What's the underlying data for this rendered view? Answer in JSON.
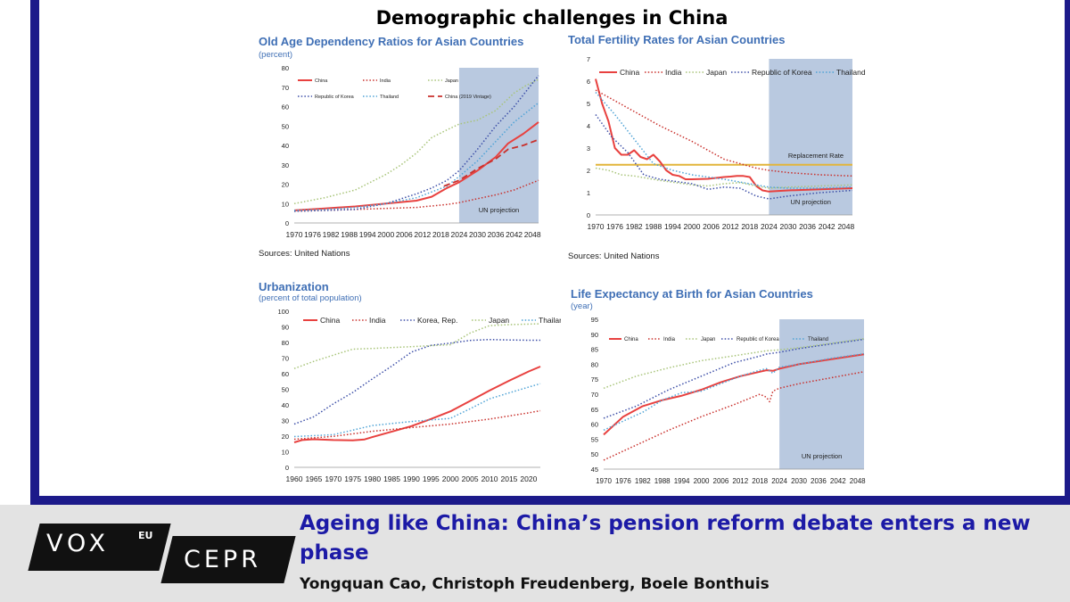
{
  "page_title": "Demographic challenges in China",
  "article": {
    "title": "Ageing like China: China’s pension reform debate enters a new phase",
    "authors": "Yongquan Cao, Christoph Freudenberg, Boele Bonthuis"
  },
  "logo": {
    "vox": "VOX",
    "eu": "EU",
    "cepr": "CEPR"
  },
  "colors": {
    "frame": "#1c1a8a",
    "title_blue": "#3f6fb5",
    "projection_band": "#b9c9e0",
    "headline": "#1c1aa6"
  },
  "chart_data": [
    {
      "type": "line",
      "title": "Old Age Dependency Ratios for Asian Countries",
      "subtitle": "(percent)",
      "source": "Sources: United Nations",
      "annotation": "UN projection",
      "projection_start": 2024,
      "x_ticks": [
        "1970",
        "1976",
        "1982",
        "1988",
        "1994",
        "2000",
        "2006",
        "2012",
        "2018",
        "2024",
        "2030",
        "2036",
        "2042",
        "2048"
      ],
      "xlim": [
        1970,
        2050
      ],
      "ylim": [
        0,
        80
      ],
      "y_ticks": [
        0,
        10,
        20,
        30,
        40,
        50,
        60,
        70,
        80
      ],
      "legend_position": "top-left",
      "series": [
        {
          "name": "China",
          "color": "#e8413f",
          "style": "solid",
          "width": 2,
          "x": [
            1970,
            1980,
            1990,
            2000,
            2010,
            2015,
            2020,
            2024,
            2030,
            2036,
            2040,
            2045,
            2050
          ],
          "y": [
            6.5,
            7.5,
            8.5,
            10,
            11.5,
            13.5,
            18,
            21,
            27,
            34,
            41,
            46,
            52
          ]
        },
        {
          "name": "India",
          "color": "#c9302c",
          "style": "dotted",
          "width": 1.5,
          "x": [
            1970,
            1980,
            1990,
            2000,
            2010,
            2020,
            2024,
            2030,
            2036,
            2042,
            2050
          ],
          "y": [
            6,
            6.5,
            7,
            7.5,
            8,
            9.5,
            10.5,
            12.5,
            14.5,
            17,
            22
          ]
        },
        {
          "name": "Japan",
          "color": "#a8c479",
          "style": "dotted",
          "width": 1.5,
          "x": [
            1970,
            1980,
            1990,
            2000,
            2005,
            2010,
            2015,
            2020,
            2024,
            2030,
            2036,
            2042,
            2046,
            2050
          ],
          "y": [
            10,
            13,
            17,
            25,
            30,
            36,
            44,
            48,
            51,
            53,
            58,
            67,
            71,
            74
          ]
        },
        {
          "name": "Republic of Korea",
          "color": "#3d4fa8",
          "style": "dotted",
          "width": 1.5,
          "x": [
            1970,
            1980,
            1990,
            2000,
            2010,
            2015,
            2020,
            2024,
            2030,
            2036,
            2042,
            2048,
            2050
          ],
          "y": [
            6,
            6.5,
            7,
            10,
            15,
            18,
            22,
            27,
            38,
            50,
            60,
            72,
            76
          ]
        },
        {
          "name": "Thailand",
          "color": "#4fa3d6",
          "style": "dotted",
          "width": 1.5,
          "x": [
            1970,
            1980,
            1990,
            2000,
            2010,
            2020,
            2024,
            2030,
            2036,
            2042,
            2050
          ],
          "y": [
            6.5,
            7,
            8,
            10,
            13,
            19,
            24,
            32,
            42,
            52,
            62
          ]
        },
        {
          "name": "China (2019 Vintage)",
          "color": "#c9302c",
          "style": "dashed",
          "width": 1.8,
          "x": [
            2019,
            2024,
            2030,
            2036,
            2040,
            2045,
            2050
          ],
          "y": [
            19,
            22,
            28,
            33,
            38,
            40,
            43
          ]
        }
      ]
    },
    {
      "type": "line",
      "title": "Total Fertility Rates for Asian Countries",
      "source": "Sources: United Nations",
      "annotation": "UN projection",
      "reference_line": {
        "label": "Replacement Rate",
        "value": 2.25,
        "color": "#e2b53a"
      },
      "projection_start": 2024,
      "x_ticks": [
        "1970",
        "1976",
        "1982",
        "1988",
        "1994",
        "2000",
        "2006",
        "2012",
        "2018",
        "2024",
        "2030",
        "2036",
        "2042",
        "2048"
      ],
      "xlim": [
        1970,
        2050
      ],
      "ylim": [
        0,
        7
      ],
      "y_ticks": [
        0,
        1,
        2,
        3,
        4,
        5,
        6,
        7
      ],
      "legend_position": "top",
      "series": [
        {
          "name": "China",
          "color": "#e8413f",
          "style": "solid",
          "width": 2,
          "x": [
            1970,
            1972,
            1974,
            1976,
            1978,
            1980,
            1982,
            1984,
            1986,
            1988,
            1990,
            1992,
            1994,
            1996,
            1998,
            2000,
            2005,
            2010,
            2012,
            2014,
            2016,
            2018,
            2020,
            2022,
            2024,
            2030,
            2040,
            2050
          ],
          "y": [
            6.1,
            5,
            4.2,
            3,
            2.7,
            2.7,
            2.9,
            2.6,
            2.5,
            2.7,
            2.4,
            2,
            1.8,
            1.75,
            1.6,
            1.6,
            1.62,
            1.7,
            1.72,
            1.75,
            1.75,
            1.7,
            1.3,
            1.1,
            1.05,
            1.1,
            1.15,
            1.2
          ]
        },
        {
          "name": "India",
          "color": "#c9302c",
          "style": "dotted",
          "width": 1.5,
          "x": [
            1970,
            1980,
            1990,
            2000,
            2010,
            2020,
            2024,
            2030,
            2040,
            2050
          ],
          "y": [
            5.6,
            4.8,
            4,
            3.3,
            2.5,
            2.1,
            2.0,
            1.9,
            1.8,
            1.75
          ]
        },
        {
          "name": "Japan",
          "color": "#a8c479",
          "style": "dotted",
          "width": 1.5,
          "x": [
            1970,
            1974,
            1978,
            1982,
            1990,
            2000,
            2005,
            2010,
            2015,
            2020,
            2024,
            2030,
            2040,
            2050
          ],
          "y": [
            2.1,
            2,
            1.8,
            1.75,
            1.55,
            1.35,
            1.3,
            1.4,
            1.45,
            1.3,
            1.2,
            1.25,
            1.3,
            1.35
          ]
        },
        {
          "name": "Republic of Korea",
          "color": "#3d4fa8",
          "style": "dotted",
          "width": 1.5,
          "x": [
            1970,
            1975,
            1980,
            1985,
            1990,
            2000,
            2005,
            2010,
            2015,
            2020,
            2024,
            2030,
            2040,
            2050
          ],
          "y": [
            4.5,
            3.5,
            2.8,
            1.8,
            1.6,
            1.4,
            1.15,
            1.25,
            1.2,
            0.85,
            0.72,
            0.85,
            1.0,
            1.1
          ]
        },
        {
          "name": "Thailand",
          "color": "#4fa3d6",
          "style": "dotted",
          "width": 1.5,
          "x": [
            1970,
            1976,
            1982,
            1988,
            1994,
            2000,
            2010,
            2020,
            2024,
            2030,
            2040,
            2050
          ],
          "y": [
            5.5,
            4.5,
            3.4,
            2.3,
            2,
            1.8,
            1.6,
            1.35,
            1.25,
            1.2,
            1.2,
            1.25
          ]
        }
      ]
    },
    {
      "type": "line",
      "title": "Urbanization",
      "subtitle": "(percent of total population)",
      "x_ticks": [
        "1960",
        "1965",
        "1970",
        "1975",
        "1980",
        "1985",
        "1990",
        "1995",
        "2000",
        "2005",
        "2010",
        "2015",
        "2020"
      ],
      "xlim": [
        1960,
        2023
      ],
      "ylim": [
        0,
        100
      ],
      "y_ticks": [
        0,
        10,
        20,
        30,
        40,
        50,
        60,
        70,
        80,
        90,
        100
      ],
      "legend_position": "top",
      "series": [
        {
          "name": "China",
          "color": "#e8413f",
          "style": "solid",
          "width": 2,
          "x": [
            1960,
            1962,
            1965,
            1970,
            1975,
            1978,
            1980,
            1985,
            1990,
            1995,
            2000,
            2005,
            2010,
            2015,
            2020,
            2023
          ],
          "y": [
            16,
            17.5,
            18,
            17.5,
            17.3,
            17.9,
            19.4,
            22.9,
            26.4,
            31,
            35.9,
            42.5,
            49.2,
            55.5,
            61.4,
            64.6
          ]
        },
        {
          "name": "India",
          "color": "#c9302c",
          "style": "dotted",
          "width": 1.5,
          "x": [
            1960,
            1970,
            1980,
            1990,
            2000,
            2010,
            2020,
            2023
          ],
          "y": [
            18,
            19.8,
            23.1,
            25.5,
            27.7,
            30.9,
            34.9,
            36.3
          ]
        },
        {
          "name": "Korea, Rep.",
          "color": "#3d4fa8",
          "style": "dotted",
          "width": 1.5,
          "x": [
            1960,
            1965,
            1970,
            1975,
            1980,
            1985,
            1990,
            1995,
            2000,
            2005,
            2010,
            2015,
            2020,
            2023
          ],
          "y": [
            27.7,
            32.4,
            40.7,
            48,
            56.7,
            64.9,
            73.8,
            78.2,
            79.6,
            81.3,
            81.9,
            81.6,
            81.4,
            81.4
          ]
        },
        {
          "name": "Japan",
          "color": "#a8c479",
          "style": "dotted",
          "width": 1.5,
          "x": [
            1960,
            1965,
            1970,
            1975,
            1980,
            1990,
            2000,
            2005,
            2010,
            2015,
            2020,
            2023
          ],
          "y": [
            63.3,
            67.9,
            71.9,
            75.7,
            76.2,
            77.3,
            78.6,
            86,
            90.8,
            91.4,
            91.8,
            92
          ]
        },
        {
          "name": "Thailand",
          "color": "#4fa3d6",
          "style": "dotted",
          "width": 1.5,
          "x": [
            1960,
            1970,
            1975,
            1980,
            1990,
            2000,
            2005,
            2010,
            2015,
            2020,
            2023
          ],
          "y": [
            19.7,
            20.9,
            23.8,
            26.8,
            29.4,
            31.4,
            37.5,
            43.9,
            47.7,
            51.4,
            53.6
          ]
        }
      ]
    },
    {
      "type": "line",
      "title": "Life Expectancy at Birth for Asian Countries",
      "subtitle": "(year)",
      "annotation": "UN projection",
      "projection_start": 2024,
      "x_ticks": [
        "1970",
        "1976",
        "1982",
        "1988",
        "1994",
        "2000",
        "2006",
        "2012",
        "2018",
        "2024",
        "2030",
        "2036",
        "2042",
        "2048"
      ],
      "xlim": [
        1970,
        2050
      ],
      "ylim": [
        45,
        95
      ],
      "y_ticks": [
        45,
        50,
        55,
        60,
        65,
        70,
        75,
        80,
        85,
        90,
        95
      ],
      "legend_position": "top",
      "series": [
        {
          "name": "China",
          "color": "#e8413f",
          "style": "solid",
          "width": 2,
          "x": [
            1970,
            1976,
            1982,
            1988,
            1994,
            2000,
            2006,
            2012,
            2018,
            2020,
            2022,
            2024,
            2030,
            2040,
            2050
          ],
          "y": [
            56.5,
            62.5,
            66,
            68,
            69.5,
            71.5,
            74,
            76,
            77.5,
            78,
            77.8,
            78.5,
            80,
            81.7,
            83.3
          ]
        },
        {
          "name": "India",
          "color": "#c9302c",
          "style": "dotted",
          "width": 1.5,
          "x": [
            1970,
            1980,
            1990,
            2000,
            2010,
            2018,
            2020,
            2021,
            2022,
            2024,
            2030,
            2040,
            2050
          ],
          "y": [
            48,
            53,
            58,
            62.5,
            66.5,
            70,
            69,
            67.5,
            71,
            72,
            73.5,
            75.5,
            77.5
          ]
        },
        {
          "name": "Japan",
          "color": "#a8c479",
          "style": "dotted",
          "width": 1.5,
          "x": [
            1970,
            1980,
            1990,
            2000,
            2010,
            2020,
            2024,
            2030,
            2040,
            2050
          ],
          "y": [
            72,
            76,
            78.8,
            81.2,
            82.8,
            84.5,
            84.8,
            85.5,
            87,
            88.5
          ]
        },
        {
          "name": "Republic of Korea",
          "color": "#3d4fa8",
          "style": "dotted",
          "width": 1.5,
          "x": [
            1970,
            1980,
            1990,
            2000,
            2010,
            2018,
            2020,
            2024,
            2030,
            2040,
            2050
          ],
          "y": [
            62,
            66,
            71.5,
            76,
            80.5,
            82.7,
            83.4,
            84,
            85.2,
            86.8,
            88.3
          ]
        },
        {
          "name": "Thailand",
          "color": "#4fa3d6",
          "style": "dotted",
          "width": 1.5,
          "x": [
            1970,
            1976,
            1982,
            1988,
            1994,
            2000,
            2006,
            2012,
            2018,
            2020,
            2022,
            2024,
            2030,
            2040,
            2050
          ],
          "y": [
            58,
            61,
            64,
            68,
            70.5,
            71,
            73.5,
            76,
            78,
            78.5,
            77,
            79,
            80,
            82,
            83.5
          ]
        }
      ]
    }
  ]
}
